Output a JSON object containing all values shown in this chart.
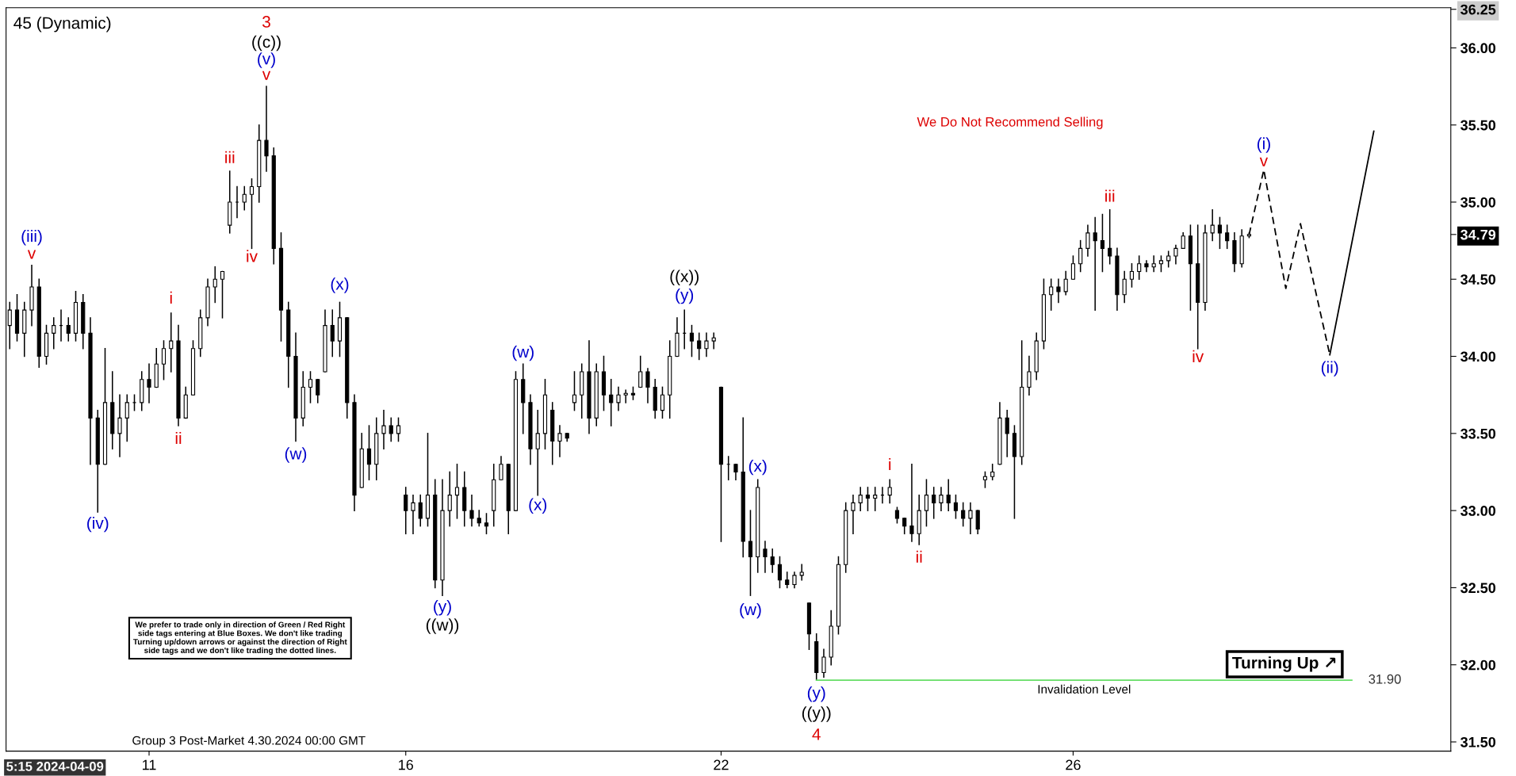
{
  "chart_data": {
    "type": "candlestick",
    "title": "45 (Dynamic)",
    "categories": [
      null,
      null,
      null,
      null,
      null,
      null,
      null,
      null,
      null,
      null,
      null,
      null,
      null,
      null,
      null,
      null,
      null,
      null,
      null,
      "11",
      null,
      null,
      null,
      null,
      null,
      null,
      null,
      null,
      null,
      null,
      null,
      null,
      null,
      null,
      null,
      null,
      null,
      null,
      null,
      null,
      null,
      null,
      null,
      null,
      null,
      null,
      null,
      null,
      null,
      null,
      null,
      null,
      null,
      null,
      "16",
      null,
      null,
      null,
      null,
      null,
      null,
      null,
      null,
      null,
      null,
      null,
      null,
      null,
      null,
      null,
      null,
      null,
      null,
      null,
      null,
      null,
      null,
      null,
      null,
      null,
      null,
      null,
      null,
      null,
      null,
      null,
      null,
      null,
      null,
      null,
      null,
      null,
      null,
      null,
      null,
      null,
      null,
      "22",
      null,
      null,
      null,
      null,
      null,
      null,
      null,
      null,
      null,
      null,
      null,
      null,
      null,
      null,
      null,
      null,
      null,
      null,
      null,
      null,
      null,
      null,
      null,
      null,
      null,
      null,
      null,
      null,
      null,
      null,
      null,
      null,
      null,
      null,
      null,
      null,
      null,
      null,
      null,
      null,
      null,
      null,
      null,
      null,
      null,
      null,
      null,
      "26",
      null,
      null,
      null,
      null,
      null,
      null,
      null,
      null,
      null,
      null,
      null,
      null,
      null,
      null,
      null,
      null,
      null,
      null,
      null,
      null,
      null,
      null,
      null,
      null,
      null,
      null,
      null,
      null,
      null,
      null,
      null,
      null,
      null,
      null,
      null,
      null,
      null,
      null,
      null,
      null,
      null,
      null,
      null,
      null,
      null,
      null,
      null,
      null,
      null,
      null,
      null
    ],
    "ylim": [
      31.44,
      36.26
    ],
    "yticks": [
      {
        "value": 31.5,
        "label": "31.50"
      },
      {
        "value": 32.0,
        "label": "32.00"
      },
      {
        "value": 32.5,
        "label": "32.50"
      },
      {
        "value": 33.0,
        "label": "33.00"
      },
      {
        "value": 33.5,
        "label": "33.50"
      },
      {
        "value": 34.0,
        "label": "34.00"
      },
      {
        "value": 34.5,
        "label": "34.50"
      },
      {
        "value": 34.79,
        "label": "34.79"
      },
      {
        "value": 35.0,
        "label": "35.00"
      },
      {
        "value": 35.5,
        "label": "35.50"
      },
      {
        "value": 36.0,
        "label": "36.00"
      },
      {
        "value": 36.25,
        "label": "36.25"
      }
    ],
    "series": [
      {
        "color": "#000000",
        "ohlc": [
          [
            34.2,
            34.35,
            34.05,
            34.3
          ],
          [
            34.3,
            34.4,
            34.1,
            34.15
          ],
          [
            34.15,
            34.35,
            34.0,
            34.3
          ],
          [
            34.3,
            34.59,
            34.2,
            34.45
          ],
          [
            34.45,
            34.5,
            33.93,
            34.0
          ],
          [
            34.0,
            34.2,
            33.95,
            34.15
          ],
          [
            34.15,
            34.25,
            34.05,
            34.2
          ],
          [
            34.2,
            34.3,
            34.1,
            34.2
          ],
          [
            34.2,
            34.25,
            34.1,
            34.15
          ],
          [
            34.15,
            34.42,
            34.1,
            34.35
          ],
          [
            34.35,
            34.4,
            34.05,
            34.15
          ],
          [
            34.15,
            34.25,
            33.3,
            33.6
          ],
          [
            33.6,
            33.65,
            32.99,
            33.3
          ],
          [
            33.3,
            34.05,
            33.3,
            33.7
          ],
          [
            33.7,
            33.9,
            33.4,
            33.5
          ],
          [
            33.5,
            33.75,
            33.35,
            33.6
          ],
          [
            33.6,
            33.75,
            33.45,
            33.7
          ],
          [
            33.7,
            33.75,
            33.65,
            33.7
          ],
          [
            33.7,
            33.9,
            33.65,
            33.85
          ],
          [
            33.85,
            33.95,
            33.7,
            33.8
          ],
          [
            33.8,
            34.05,
            33.8,
            33.95
          ],
          [
            33.95,
            34.1,
            33.85,
            34.05
          ],
          [
            34.05,
            34.28,
            33.9,
            34.1
          ],
          [
            34.1,
            34.2,
            33.55,
            33.6
          ],
          [
            33.6,
            33.8,
            33.6,
            33.75
          ],
          [
            33.75,
            34.1,
            33.75,
            34.05
          ],
          [
            34.05,
            34.3,
            34.0,
            34.25
          ],
          [
            34.25,
            34.5,
            34.2,
            34.45
          ],
          [
            34.45,
            34.58,
            34.35,
            34.5
          ],
          [
            34.5,
            34.55,
            34.25,
            34.55
          ],
          [
            34.85,
            35.2,
            34.8,
            35.0
          ],
          [
            35.0,
            35.1,
            34.9,
            35.0
          ],
          [
            35.0,
            35.1,
            34.95,
            35.05
          ],
          [
            35.05,
            35.15,
            34.7,
            35.1
          ],
          [
            35.1,
            35.5,
            35.0,
            35.4
          ],
          [
            35.4,
            35.75,
            35.2,
            35.3
          ],
          [
            35.3,
            35.35,
            34.6,
            34.7
          ],
          [
            34.7,
            34.8,
            34.1,
            34.3
          ],
          [
            34.3,
            34.35,
            33.8,
            34.0
          ],
          [
            34.0,
            34.15,
            33.45,
            33.6
          ],
          [
            33.6,
            33.9,
            33.55,
            33.8
          ],
          [
            33.8,
            33.9,
            33.7,
            33.85
          ],
          [
            33.85,
            33.85,
            33.7,
            33.75
          ],
          [
            33.9,
            34.3,
            33.9,
            34.2
          ],
          [
            34.2,
            34.3,
            34.0,
            34.1
          ],
          [
            34.1,
            34.35,
            34.0,
            34.25
          ],
          [
            34.25,
            34.25,
            33.6,
            33.7
          ],
          [
            33.7,
            33.75,
            33.0,
            33.1
          ],
          [
            33.15,
            33.5,
            33.15,
            33.4
          ],
          [
            33.4,
            33.55,
            33.2,
            33.3
          ],
          [
            33.3,
            33.6,
            33.2,
            33.5
          ],
          [
            33.5,
            33.65,
            33.4,
            33.55
          ],
          [
            33.55,
            33.6,
            33.45,
            33.5
          ],
          [
            33.5,
            33.6,
            33.45,
            33.55
          ],
          [
            33.1,
            33.15,
            32.85,
            33.0
          ],
          [
            33.0,
            33.1,
            32.85,
            33.05
          ],
          [
            33.05,
            33.1,
            32.9,
            32.95
          ],
          [
            32.95,
            33.5,
            32.9,
            33.1
          ],
          [
            33.1,
            33.2,
            32.5,
            32.55
          ],
          [
            32.55,
            33.2,
            32.45,
            33.0
          ],
          [
            33.0,
            33.25,
            32.9,
            33.1
          ],
          [
            33.1,
            33.3,
            32.95,
            33.15
          ],
          [
            33.15,
            33.25,
            32.9,
            33.0
          ],
          [
            33.0,
            33.1,
            32.9,
            32.95
          ],
          [
            32.95,
            33.0,
            32.9,
            32.92
          ],
          [
            32.92,
            32.98,
            32.85,
            32.9
          ],
          [
            33.0,
            33.3,
            32.9,
            33.2
          ],
          [
            33.2,
            33.35,
            33.2,
            33.3
          ],
          [
            33.3,
            33.3,
            32.85,
            33.0
          ],
          [
            33.0,
            33.9,
            33.0,
            33.85
          ],
          [
            33.85,
            33.95,
            33.5,
            33.7
          ],
          [
            33.7,
            33.75,
            33.3,
            33.4
          ],
          [
            33.4,
            33.65,
            33.1,
            33.5
          ],
          [
            33.5,
            33.85,
            33.4,
            33.75
          ],
          [
            33.65,
            33.7,
            33.3,
            33.45
          ],
          [
            33.45,
            33.55,
            33.35,
            33.5
          ],
          [
            33.5,
            33.5,
            33.45,
            33.47
          ],
          [
            33.7,
            33.9,
            33.65,
            33.75
          ],
          [
            33.75,
            33.95,
            33.6,
            33.9
          ],
          [
            33.9,
            34.1,
            33.5,
            33.6
          ],
          [
            33.6,
            33.95,
            33.55,
            33.9
          ],
          [
            33.9,
            34.0,
            33.65,
            33.75
          ],
          [
            33.75,
            33.85,
            33.55,
            33.7
          ],
          [
            33.7,
            33.8,
            33.65,
            33.75
          ],
          [
            33.75,
            33.78,
            33.7,
            33.76
          ],
          [
            33.76,
            33.8,
            33.72,
            33.75
          ],
          [
            33.8,
            34.0,
            33.8,
            33.9
          ],
          [
            33.9,
            33.92,
            33.7,
            33.8
          ],
          [
            33.8,
            33.85,
            33.6,
            33.65
          ],
          [
            33.65,
            33.8,
            33.6,
            33.75
          ],
          [
            33.75,
            34.1,
            33.6,
            34.0
          ],
          [
            34.0,
            34.25,
            34.0,
            34.15
          ],
          [
            34.15,
            34.3,
            34.05,
            34.15
          ],
          [
            34.15,
            34.2,
            34.0,
            34.1
          ],
          [
            34.1,
            34.15,
            33.98,
            34.05
          ],
          [
            34.05,
            34.15,
            34.0,
            34.1
          ],
          [
            34.1,
            34.15,
            34.05,
            34.12
          ],
          [
            33.8,
            33.8,
            32.8,
            33.3
          ],
          [
            33.3,
            33.35,
            33.2,
            33.3
          ],
          [
            33.3,
            33.3,
            33.2,
            33.25
          ],
          [
            33.25,
            33.6,
            32.7,
            32.8
          ],
          [
            32.8,
            33.0,
            32.45,
            32.7
          ],
          [
            32.7,
            33.2,
            32.6,
            33.15
          ],
          [
            32.75,
            32.8,
            32.6,
            32.7
          ],
          [
            32.7,
            32.75,
            32.6,
            32.65
          ],
          [
            32.65,
            32.7,
            32.5,
            32.55
          ],
          [
            32.55,
            32.6,
            32.5,
            32.52
          ],
          [
            32.52,
            32.6,
            32.5,
            32.58
          ],
          [
            32.58,
            32.65,
            32.55,
            32.6
          ],
          [
            32.4,
            32.4,
            32.1,
            32.2
          ],
          [
            32.15,
            32.2,
            31.9,
            31.95
          ],
          [
            31.95,
            32.1,
            31.92,
            32.05
          ],
          [
            32.05,
            32.35,
            32.0,
            32.25
          ],
          [
            32.25,
            32.7,
            32.2,
            32.65
          ],
          [
            32.65,
            33.05,
            32.6,
            33.0
          ],
          [
            33.0,
            33.1,
            32.85,
            33.05
          ],
          [
            33.05,
            33.15,
            33.0,
            33.1
          ],
          [
            33.1,
            33.15,
            33.0,
            33.08
          ],
          [
            33.08,
            33.15,
            33.0,
            33.1
          ],
          [
            33.1,
            33.15,
            33.05,
            33.1
          ],
          [
            33.1,
            33.2,
            33.05,
            33.15
          ],
          [
            33.0,
            33.02,
            32.92,
            32.95
          ],
          [
            32.95,
            32.95,
            32.85,
            32.9
          ],
          [
            32.9,
            33.3,
            32.8,
            32.85
          ],
          [
            32.85,
            33.1,
            32.78,
            33.0
          ],
          [
            33.0,
            33.2,
            32.9,
            33.1
          ],
          [
            33.1,
            33.15,
            32.95,
            33.05
          ],
          [
            33.05,
            33.15,
            33.0,
            33.1
          ],
          [
            33.1,
            33.2,
            33.0,
            33.05
          ],
          [
            33.05,
            33.1,
            32.95,
            33.0
          ],
          [
            33.0,
            33.05,
            32.9,
            32.95
          ],
          [
            32.95,
            33.05,
            32.85,
            33.0
          ],
          [
            33.0,
            33.0,
            32.85,
            32.88
          ],
          [
            33.2,
            33.25,
            33.15,
            33.22
          ],
          [
            33.22,
            33.3,
            33.2,
            33.25
          ],
          [
            33.3,
            33.7,
            33.3,
            33.6
          ],
          [
            33.6,
            33.65,
            33.35,
            33.5
          ],
          [
            33.5,
            33.55,
            32.95,
            33.35
          ],
          [
            33.35,
            34.1,
            33.3,
            33.8
          ],
          [
            33.8,
            34.0,
            33.75,
            33.9
          ],
          [
            33.9,
            34.15,
            33.85,
            34.1
          ],
          [
            34.1,
            34.5,
            34.05,
            34.4
          ],
          [
            34.4,
            34.5,
            34.3,
            34.45
          ],
          [
            34.45,
            34.5,
            34.35,
            34.42
          ],
          [
            34.42,
            34.55,
            34.4,
            34.5
          ],
          [
            34.5,
            34.65,
            34.5,
            34.6
          ],
          [
            34.6,
            34.75,
            34.55,
            34.7
          ],
          [
            34.7,
            34.85,
            34.65,
            34.8
          ],
          [
            34.8,
            34.9,
            34.3,
            34.75
          ],
          [
            34.75,
            34.92,
            34.55,
            34.7
          ],
          [
            34.7,
            34.95,
            34.6,
            34.65
          ],
          [
            34.65,
            34.7,
            34.3,
            34.4
          ],
          [
            34.4,
            34.55,
            34.35,
            34.5
          ],
          [
            34.5,
            34.6,
            34.45,
            34.55
          ],
          [
            34.55,
            34.65,
            34.5,
            34.6
          ],
          [
            34.6,
            34.62,
            34.55,
            34.58
          ],
          [
            34.58,
            34.65,
            34.55,
            34.6
          ],
          [
            34.6,
            34.65,
            34.55,
            34.62
          ],
          [
            34.62,
            34.68,
            34.58,
            34.65
          ],
          [
            34.65,
            34.72,
            34.6,
            34.7
          ],
          [
            34.7,
            34.8,
            34.7,
            34.78
          ],
          [
            34.78,
            34.85,
            34.3,
            34.6
          ],
          [
            34.6,
            34.85,
            34.05,
            34.35
          ],
          [
            34.35,
            34.85,
            34.3,
            34.8
          ],
          [
            34.8,
            34.95,
            34.75,
            34.85
          ],
          [
            34.85,
            34.9,
            34.7,
            34.8
          ],
          [
            34.8,
            34.85,
            34.7,
            34.75
          ],
          [
            34.75,
            34.8,
            34.55,
            34.6
          ],
          [
            34.6,
            34.82,
            34.58,
            34.78
          ],
          [
            34.78,
            34.8,
            34.77,
            34.79
          ],
          null,
          null,
          null,
          null,
          null,
          null,
          null,
          null,
          null,
          null,
          null,
          null,
          null,
          null,
          null,
          null,
          null,
          null,
          null,
          null,
          null,
          null,
          null,
          null,
          null,
          null,
          null
        ]
      },
      {
        "type": "line",
        "color": "#000000",
        "line_style": "dashed",
        "values": [
          null,
          null,
          null,
          null,
          null,
          null,
          null,
          null,
          null,
          null,
          null,
          null,
          null,
          null,
          null,
          null,
          null,
          null,
          null,
          null,
          null,
          null,
          null,
          null,
          null,
          null,
          null,
          null,
          null,
          null,
          null,
          null,
          null,
          null,
          null,
          null,
          null,
          null,
          null,
          null,
          null,
          null,
          null,
          null,
          null,
          null,
          null,
          null,
          null,
          null,
          null,
          null,
          null,
          null,
          null,
          null,
          null,
          null,
          null,
          null,
          null,
          null,
          null,
          null,
          null,
          null,
          null,
          null,
          null,
          null,
          null,
          null,
          null,
          null,
          null,
          null,
          null,
          null,
          null,
          null,
          null,
          null,
          null,
          null,
          null,
          null,
          null,
          null,
          null,
          null,
          null,
          null,
          null,
          null,
          null,
          null,
          null,
          null,
          null,
          null,
          null,
          null,
          null,
          null,
          null,
          null,
          null,
          null,
          null,
          null,
          null,
          null,
          null,
          null,
          null,
          null,
          null,
          null,
          null,
          null,
          null,
          null,
          null,
          null,
          null,
          null,
          null,
          null,
          null,
          null,
          null,
          null,
          null,
          null,
          null,
          null,
          null,
          null,
          null,
          null,
          null,
          null,
          null,
          null,
          null,
          null,
          null,
          null,
          null,
          null,
          null,
          null,
          null,
          null,
          null,
          null,
          null,
          null,
          null,
          null,
          null,
          null,
          null,
          null,
          null,
          null,
          null,
          null,
          null,
          34.79,
          null,
          35.21,
          null,
          null,
          34.44,
          null,
          34.86,
          null,
          null,
          null,
          34.01,
          null,
          null,
          null,
          null,
          null,
          null,
          null,
          null,
          null,
          null,
          null,
          null,
          null,
          null,
          null,
          null
        ]
      },
      {
        "type": "line",
        "color": "#000000",
        "line_style": "solid",
        "values": [
          null,
          null,
          null,
          null,
          null,
          null,
          null,
          null,
          null,
          null,
          null,
          null,
          null,
          null,
          null,
          null,
          null,
          null,
          null,
          null,
          null,
          null,
          null,
          null,
          null,
          null,
          null,
          null,
          null,
          null,
          null,
          null,
          null,
          null,
          null,
          null,
          null,
          null,
          null,
          null,
          null,
          null,
          null,
          null,
          null,
          null,
          null,
          null,
          null,
          null,
          null,
          null,
          null,
          null,
          null,
          null,
          null,
          null,
          null,
          null,
          null,
          null,
          null,
          null,
          null,
          null,
          null,
          null,
          null,
          null,
          null,
          null,
          null,
          null,
          null,
          null,
          null,
          null,
          null,
          null,
          null,
          null,
          null,
          null,
          null,
          null,
          null,
          null,
          null,
          null,
          null,
          null,
          null,
          null,
          null,
          null,
          null,
          null,
          null,
          null,
          null,
          null,
          null,
          null,
          null,
          null,
          null,
          null,
          null,
          null,
          null,
          null,
          null,
          null,
          null,
          null,
          null,
          null,
          null,
          null,
          null,
          null,
          null,
          null,
          null,
          null,
          null,
          null,
          null,
          null,
          null,
          null,
          null,
          null,
          null,
          null,
          null,
          null,
          null,
          null,
          null,
          null,
          null,
          null,
          null,
          null,
          null,
          null,
          null,
          null,
          null,
          null,
          null,
          null,
          null,
          null,
          null,
          null,
          null,
          null,
          null,
          null,
          null,
          null,
          null,
          null,
          null,
          null,
          null,
          null,
          null,
          null,
          null,
          null,
          null,
          null,
          null,
          null,
          null,
          null,
          34.01,
          null,
          null,
          null,
          null,
          null,
          35.46,
          null,
          null,
          null,
          null,
          null,
          null,
          null,
          null,
          null,
          null
        ]
      },
      {
        "type": "line",
        "name": "Invalidation Level",
        "color": "#66dd66",
        "line_style": "solid",
        "values": [
          null,
          null,
          null,
          null,
          null,
          null,
          null,
          null,
          null,
          null,
          null,
          null,
          null,
          null,
          null,
          null,
          null,
          null,
          null,
          null,
          null,
          null,
          null,
          null,
          null,
          null,
          null,
          null,
          null,
          null,
          null,
          null,
          null,
          null,
          null,
          null,
          null,
          null,
          null,
          null,
          null,
          null,
          null,
          null,
          null,
          null,
          null,
          null,
          null,
          null,
          null,
          null,
          null,
          null,
          null,
          null,
          null,
          null,
          null,
          null,
          null,
          null,
          null,
          null,
          null,
          null,
          null,
          null,
          null,
          null,
          null,
          null,
          null,
          null,
          null,
          null,
          null,
          null,
          null,
          null,
          null,
          null,
          null,
          null,
          null,
          null,
          null,
          null,
          null,
          null,
          null,
          null,
          null,
          null,
          null,
          null,
          null,
          null,
          null,
          null,
          null,
          null,
          null,
          null,
          null,
          null,
          null,
          null,
          null,
          null,
          31.9,
          31.9,
          31.9,
          31.9,
          31.9,
          31.9,
          31.9,
          31.9,
          31.9,
          31.9,
          31.9,
          31.9,
          31.9,
          31.9,
          31.9,
          31.9,
          31.9,
          31.9,
          31.9,
          31.9,
          31.9,
          31.9,
          31.9,
          31.9,
          31.9,
          31.9,
          31.9,
          31.9,
          31.9,
          31.9,
          31.9,
          31.9,
          31.9,
          31.9,
          31.9,
          31.9,
          31.9,
          31.9,
          31.9,
          31.9,
          31.9,
          31.9,
          31.9,
          31.9,
          31.9,
          31.9,
          31.9,
          31.9,
          31.9,
          31.9,
          31.9,
          31.9,
          31.9,
          31.9,
          31.9,
          31.9,
          31.9,
          31.9,
          31.9,
          31.9,
          31.9,
          31.9,
          31.9,
          31.9,
          31.9,
          31.9,
          31.9,
          31.9,
          31.9,
          31.9,
          31.9,
          31.9,
          31.9,
          31.9,
          null,
          null,
          null,
          null,
          null,
          null,
          null,
          null,
          null,
          null,
          null,
          null,
          null
        ]
      }
    ],
    "annotations": [
      "3",
      "((c))",
      "(v)",
      "v",
      "iii",
      "iv",
      "(iii)",
      "v",
      "i",
      "ii",
      "(iv)",
      "(x)",
      "(w)",
      "(y)",
      "((w))",
      "(w)",
      "(x)",
      "((x))",
      "(y)",
      "(x)",
      "(w)",
      "(y)",
      "((y))",
      "4",
      "i",
      "ii",
      "iii",
      "iv",
      "(i)",
      "v",
      "(ii)",
      "31.90",
      "We Do Not Recommend Selling",
      "We prefer to trade only in direction of Green / Red Right\nside tags entering at Blue Boxes. We don't like trading\nTurning up/down arrows or against the direction of Right\nside tags and we don't like trading the dotted lines.",
      "Turning Up ↗",
      "Group 3 Post-Market 4.30.2024 00:00 GMT",
      "5:15 2024-04-09"
    ]
  }
}
